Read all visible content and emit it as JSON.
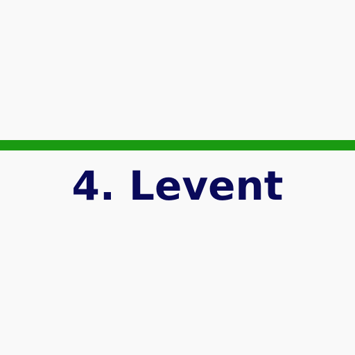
{
  "station": {
    "label": "4. Levent"
  },
  "colors": {
    "background": "#f9f9f9",
    "line": "#1a9a12",
    "text": "#0a0a5a"
  }
}
